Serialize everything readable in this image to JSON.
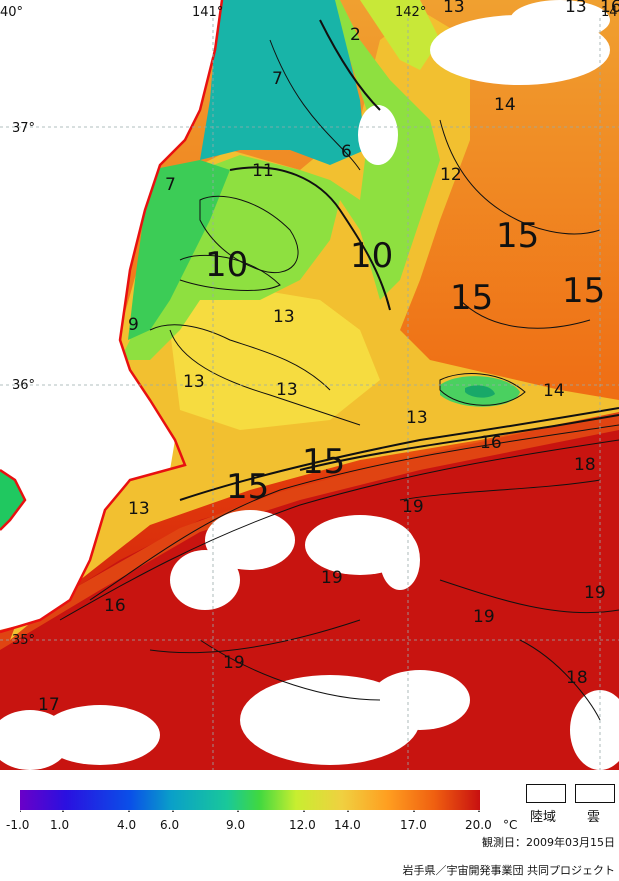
{
  "map": {
    "graticule": {
      "lon": [
        "40°",
        "141°",
        "142°",
        "14"
      ],
      "lat": [
        "37°",
        "36°",
        "35°"
      ]
    },
    "isotherm_labels": [
      {
        "text": "7"
      },
      {
        "text": "6"
      },
      {
        "text": "2"
      },
      {
        "text": "7"
      },
      {
        "text": "11"
      },
      {
        "text": "10"
      },
      {
        "text": "10"
      },
      {
        "text": "9"
      },
      {
        "text": "13"
      },
      {
        "text": "13"
      },
      {
        "text": "13"
      },
      {
        "text": "13"
      },
      {
        "text": "12"
      },
      {
        "text": "14"
      },
      {
        "text": "15"
      },
      {
        "text": "15"
      },
      {
        "text": "15"
      },
      {
        "text": "14"
      },
      {
        "text": "16"
      },
      {
        "text": "15"
      },
      {
        "text": "15"
      },
      {
        "text": "18"
      },
      {
        "text": "19"
      },
      {
        "text": "13"
      },
      {
        "text": "19"
      },
      {
        "text": "19"
      },
      {
        "text": "19"
      },
      {
        "text": "16"
      },
      {
        "text": "19"
      },
      {
        "text": "18"
      },
      {
        "text": "17"
      },
      {
        "text": "13"
      },
      {
        "text": "13"
      },
      {
        "text": "16"
      }
    ]
  },
  "colorbar": {
    "ticks": [
      "-1.0",
      "1.0",
      "4.0",
      "6.0",
      "9.0",
      "12.0",
      "14.0",
      "17.0",
      "20.0"
    ],
    "unit": "°C",
    "colors": [
      "#6a00c8",
      "#2a10e0",
      "#0a50e8",
      "#0aa0c8",
      "#19c89a",
      "#40d840",
      "#c8ee30",
      "#f0d040",
      "#ff9e20",
      "#f06010",
      "#c81010"
    ]
  },
  "legend": {
    "land": "陸域",
    "cloud": "雲"
  },
  "footer": {
    "observation_date": "観測日：2009年03月15日",
    "credit": "岩手県／宇宙開発事業団 共同プロジェクト"
  }
}
